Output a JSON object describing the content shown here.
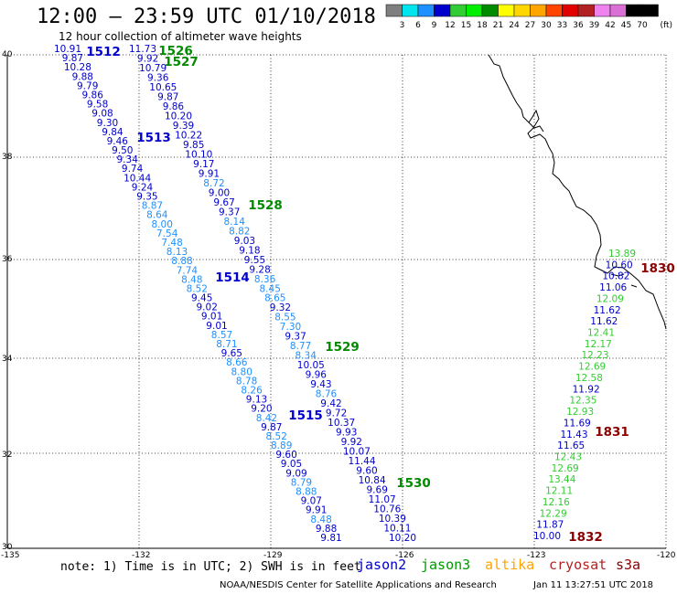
{
  "header": {
    "title": "12:00 – 23:59 UTC 01/10/2018",
    "subtitle": "12 hour collection of altimeter wave heights"
  },
  "color_scale": {
    "unit": "(ft)",
    "labels": [
      "3",
      "6",
      "9",
      "12",
      "15",
      "18",
      "21",
      "24",
      "27",
      "30",
      "33",
      "36",
      "39",
      "42",
      "45",
      "70"
    ],
    "colors": [
      "#7f7f7f",
      "#00e5ee",
      "#1e90ff",
      "#0000cd",
      "#32cd32",
      "#00ee00",
      "#008b00",
      "#ffff00",
      "#ffd700",
      "#ffa500",
      "#ff4500",
      "#e00000",
      "#b22222",
      "#ee82ee",
      "#da70d6",
      "#000000",
      "#000000"
    ]
  },
  "map": {
    "lon_ticks": [
      "-135",
      "-132",
      "-129",
      "-126",
      "-123",
      "-120"
    ],
    "lat_ticks": [
      "40",
      "38",
      "36",
      "34",
      "32",
      "30"
    ]
  },
  "tracks": [
    {
      "pass": "1512",
      "sat": "jason2",
      "values": [
        "10.91",
        "9.87",
        "10.28",
        "9.88",
        "9.79",
        "9.86",
        "9.58",
        "9.08",
        "9.30",
        "9.84",
        "9.46",
        "9.50",
        "9.34",
        "9.74",
        "10.44",
        "9.24",
        "9.35",
        "8.87",
        "8.64",
        "8.00",
        "7.54",
        "7.48",
        "8.13",
        "8.88",
        "7.74",
        "8.48",
        "8.52",
        "9.45",
        "9.02",
        "9.01",
        "9.01",
        "8.57",
        "8.71",
        "9.65",
        "8.66",
        "8.80",
        "8.78",
        "8.26",
        "9.13",
        "9.20",
        "8.42",
        "9.87",
        "8.52",
        "8.89",
        "9.60",
        "9.05",
        "9.09",
        "8.79",
        "8.88",
        "9.07",
        "9.91",
        "8.48",
        "9.88",
        "9.81"
      ]
    },
    {
      "pass": "1526",
      "sat": "jason3",
      "values": [
        "11.73",
        "9.92",
        "10.79",
        "9.36",
        "10.65",
        "9.87",
        "9.86",
        "10.20",
        "9.39",
        "10.22",
        "9.85",
        "10.10",
        "9.17",
        "9.91",
        "8.72",
        "9.00",
        "9.67",
        "9.37",
        "8.14",
        "8.82",
        "9.03",
        "9.18",
        "9.55",
        "9.28",
        "8.36",
        "8.45",
        "8.65",
        "9.32",
        "8.55",
        "7.30",
        "9.37",
        "8.77",
        "8.34",
        "10.05",
        "9.96",
        "9.43",
        "8.76",
        "9.42",
        "9.72",
        "10.37",
        "9.93",
        "9.92",
        "10.07",
        "11.44",
        "9.60",
        "10.84",
        "9.69",
        "11.07",
        "10.76",
        "10.39",
        "10.11",
        "10.20"
      ]
    },
    {
      "pass": "1830",
      "sat": "cryosat",
      "values": [
        "13.89",
        "10.60",
        "10.82",
        "11.06",
        "12.09",
        "11.62",
        "11.62",
        "12.41",
        "12.17",
        "12.23",
        "12.69",
        "12.58",
        "11.92",
        "12.35",
        "12.93",
        "11.69",
        "11.43",
        "11.65",
        "12.43",
        "12.69",
        "13.44",
        "12.11",
        "12.16",
        "12.29",
        "11.87",
        "10.00"
      ]
    }
  ],
  "pass_labels": {
    "p1512": "1512",
    "p1526": "1526",
    "p1527": "1527",
    "p1513": "1513",
    "p1528": "1528",
    "p1514": "1514",
    "p1529": "1529",
    "p1515": "1515",
    "p1530": "1530",
    "p1830": "1830",
    "p1831": "1831",
    "p1832": "1832"
  },
  "footer": {
    "note": "note: 1) Time is in UTC; 2) SWH is in feet",
    "legend": [
      {
        "name": "jason2",
        "color": "#0000cd"
      },
      {
        "name": "jason3",
        "color": "#009900"
      },
      {
        "name": "altika",
        "color": "#ffa500"
      },
      {
        "name": "cryosat",
        "color": "#b22222"
      },
      {
        "name": "s3a",
        "color": "#8b0000"
      }
    ],
    "credit": "NOAA/NESDIS Center for Satellite Applications and Research",
    "timestamp": "Jan 11 13:27:51 UTC 2018"
  }
}
